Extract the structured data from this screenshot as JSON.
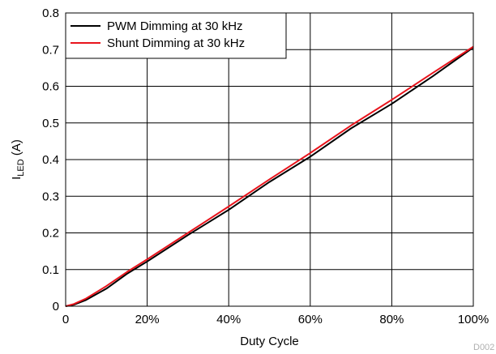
{
  "chart_data": {
    "type": "line",
    "xlabel": "Duty Cycle",
    "ylabel_main": "I",
    "ylabel_sub": "LED",
    "ylabel_unit": " (A)",
    "xlim": [
      0,
      100
    ],
    "ylim": [
      0,
      0.8
    ],
    "grid": true,
    "legend_position": "top-left",
    "x_ticks": [
      {
        "value": 0,
        "label": "0"
      },
      {
        "value": 20,
        "label": "20%"
      },
      {
        "value": 40,
        "label": "40%"
      },
      {
        "value": 60,
        "label": "60%"
      },
      {
        "value": 80,
        "label": "80%"
      },
      {
        "value": 100,
        "label": "100%"
      }
    ],
    "y_ticks": [
      {
        "value": 0,
        "label": "0"
      },
      {
        "value": 0.1,
        "label": "0.1"
      },
      {
        "value": 0.2,
        "label": "0.2"
      },
      {
        "value": 0.3,
        "label": "0.3"
      },
      {
        "value": 0.4,
        "label": "0.4"
      },
      {
        "value": 0.5,
        "label": "0.5"
      },
      {
        "value": 0.6,
        "label": "0.6"
      },
      {
        "value": 0.7,
        "label": "0.7"
      },
      {
        "value": 0.8,
        "label": "0.8"
      }
    ],
    "series": [
      {
        "name": "PWM Dimming at 30 kHz",
        "color": "#000000",
        "x": [
          0,
          2,
          5,
          10,
          15,
          20,
          30,
          40,
          50,
          60,
          70,
          80,
          90,
          100
        ],
        "y": [
          0,
          0.004,
          0.017,
          0.048,
          0.088,
          0.122,
          0.194,
          0.263,
          0.339,
          0.408,
          0.485,
          0.552,
          0.627,
          0.706
        ]
      },
      {
        "name": "Shunt Dimming at 30 kHz",
        "color": "#e8141c",
        "x": [
          0,
          2,
          5,
          10,
          15,
          20,
          30,
          40,
          50,
          60,
          70,
          80,
          90,
          100
        ],
        "y": [
          0,
          0.006,
          0.021,
          0.055,
          0.093,
          0.128,
          0.2,
          0.272,
          0.346,
          0.418,
          0.493,
          0.563,
          0.636,
          0.708
        ]
      }
    ],
    "corner_label": "D002"
  }
}
